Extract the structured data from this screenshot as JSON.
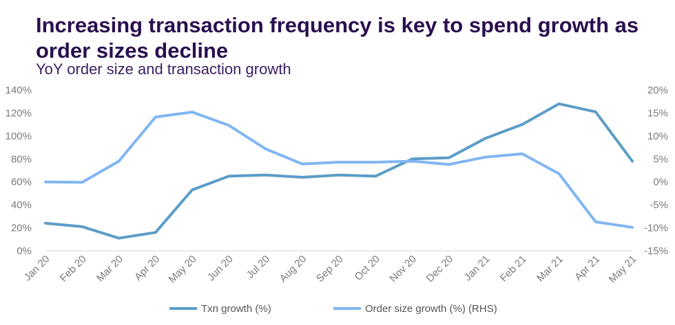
{
  "title": "Increasing transaction frequency is key to spend growth as order sizes decline",
  "subtitle": "YoY order size and transaction growth",
  "chart_data": {
    "type": "line",
    "categories": [
      "Jan 20",
      "Feb 20",
      "Mar 20",
      "Apr 20",
      "May 20",
      "Jun 20",
      "Jul 20",
      "Aug 20",
      "Sep 20",
      "Oct 20",
      "Nov 20",
      "Dec 20",
      "Jan 21",
      "Feb 21",
      "Mar 21",
      "Apr 21",
      "May 21"
    ],
    "series": [
      {
        "name": "Txn growth (%)",
        "axis": "left",
        "color": "#5b9dc7",
        "values": [
          0.24,
          0.21,
          0.11,
          0.16,
          0.53,
          0.65,
          0.66,
          0.64,
          0.66,
          0.65,
          0.8,
          0.81,
          0.98,
          1.1,
          1.28,
          1.21,
          0.78
        ]
      },
      {
        "name": "Order size growth (%) (RHS)",
        "axis": "right",
        "color": "#80b6f2",
        "values": [
          0.0,
          -0.001,
          0.045,
          0.141,
          0.152,
          0.123,
          0.072,
          0.039,
          0.043,
          0.043,
          0.045,
          0.038,
          0.054,
          0.061,
          0.018,
          -0.087,
          -0.099
        ]
      }
    ],
    "y_left": {
      "ylim": [
        0,
        1.4
      ],
      "ticks": [
        "0%",
        "20%",
        "40%",
        "60%",
        "80%",
        "100%",
        "120%",
        "140%"
      ]
    },
    "y_right": {
      "ylim": [
        -0.15,
        0.2
      ],
      "ticks": [
        "-15%",
        "-10%",
        "-5%",
        "0%",
        "5%",
        "10%",
        "15%",
        "20%"
      ]
    },
    "grid": false,
    "legend": "bottom-center"
  }
}
